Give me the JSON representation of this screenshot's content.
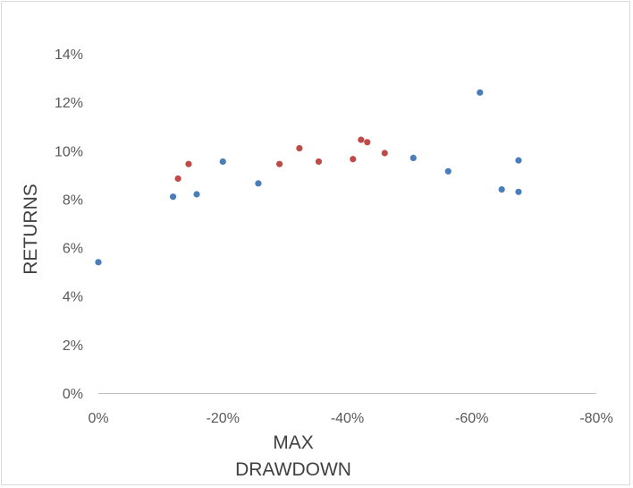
{
  "chart_data": {
    "type": "scatter",
    "xlabel_lines": [
      "MAX",
      "DRAWDOWN"
    ],
    "ylabel": "RETURNS",
    "xlim": [
      0,
      -80
    ],
    "ylim": [
      0,
      14
    ],
    "x_ticks": [
      0,
      -20,
      -40,
      -60,
      -80
    ],
    "x_tick_labels": [
      "0%",
      "-20%",
      "-40%",
      "-60%",
      "-80%"
    ],
    "y_ticks": [
      0,
      2,
      4,
      6,
      8,
      10,
      12,
      14
    ],
    "y_tick_labels": [
      "0%",
      "2%",
      "4%",
      "6%",
      "8%",
      "10%",
      "12%",
      "14%"
    ],
    "grid": false,
    "series": [
      {
        "color": "#4a7ebb",
        "points": [
          {
            "x": 0.0,
            "y": 5.4
          },
          {
            "x": -12.0,
            "y": 8.1
          },
          {
            "x": -15.8,
            "y": 8.2
          },
          {
            "x": -20.0,
            "y": 9.55
          },
          {
            "x": -25.7,
            "y": 8.65
          },
          {
            "x": -50.6,
            "y": 9.7
          },
          {
            "x": -56.2,
            "y": 9.15
          },
          {
            "x": -61.3,
            "y": 12.4
          },
          {
            "x": -64.8,
            "y": 8.4
          },
          {
            "x": -67.5,
            "y": 9.6
          },
          {
            "x": -67.5,
            "y": 8.3
          }
        ]
      },
      {
        "color": "#be4b48",
        "points": [
          {
            "x": -12.8,
            "y": 8.85
          },
          {
            "x": -14.5,
            "y": 9.45
          },
          {
            "x": -29.1,
            "y": 9.45
          },
          {
            "x": -32.3,
            "y": 10.1
          },
          {
            "x": -35.4,
            "y": 9.55
          },
          {
            "x": -40.9,
            "y": 9.65
          },
          {
            "x": -42.2,
            "y": 10.45
          },
          {
            "x": -43.2,
            "y": 10.35
          },
          {
            "x": -46.0,
            "y": 9.9
          }
        ]
      }
    ]
  }
}
